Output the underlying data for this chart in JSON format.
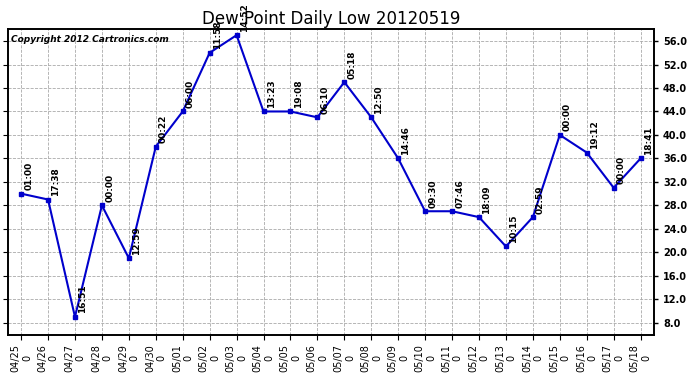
{
  "title": "Dew Point Daily Low 20120519",
  "copyright": "Copyright 2012 Cartronics.com",
  "x_labels": [
    "04/25\n0",
    "04/26\n0",
    "04/27\n0",
    "04/28\n0",
    "04/29\n0",
    "04/30\n0",
    "05/01\n0",
    "05/02\n0",
    "05/03\n0",
    "05/04\n0",
    "05/05\n0",
    "05/06\n0",
    "05/07\n0",
    "05/08\n0",
    "05/09\n0",
    "05/10\n0",
    "05/11\n0",
    "05/12\n0",
    "05/13\n0",
    "05/14\n0",
    "05/15\n0",
    "05/16\n0",
    "05/17\n0",
    "05/18\n0"
  ],
  "x_labels_line1": [
    "04/25",
    "04/26",
    "04/27",
    "04/28",
    "04/29",
    "04/30",
    "05/01",
    "05/02",
    "05/03",
    "05/04",
    "05/05",
    "05/06",
    "05/07",
    "05/08",
    "05/09",
    "05/10",
    "05/11",
    "05/12",
    "05/13",
    "05/14",
    "05/15",
    "05/16",
    "05/17",
    "05/18"
  ],
  "y_values": [
    30,
    29,
    9,
    28,
    19,
    38,
    44,
    54,
    57,
    44,
    44,
    43,
    49,
    43,
    36,
    27,
    27,
    26,
    21,
    26,
    40,
    37,
    31,
    36
  ],
  "time_labels": [
    "01:00",
    "17:38",
    "16:51",
    "00:00",
    "12:59",
    "00:22",
    "06:00",
    "11:58",
    "14:52",
    "13:23",
    "19:08",
    "06:10",
    "05:18",
    "12:50",
    "14:46",
    "09:30",
    "07:46",
    "18:09",
    "10:15",
    "02:59",
    "00:00",
    "19:12",
    "00:00",
    "18:41"
  ],
  "line_color": "#0000CC",
  "marker_color": "#0000CC",
  "bg_color": "#FFFFFF",
  "plot_bg_color": "#FFFFFF",
  "grid_color": "#AAAAAA",
  "title_fontsize": 12,
  "tick_fontsize": 7,
  "annot_fontsize": 6.5,
  "copyright_fontsize": 6.5,
  "ylim": [
    6,
    58
  ],
  "yticks": [
    8.0,
    12.0,
    16.0,
    20.0,
    24.0,
    28.0,
    32.0,
    36.0,
    40.0,
    44.0,
    48.0,
    52.0,
    56.0
  ]
}
